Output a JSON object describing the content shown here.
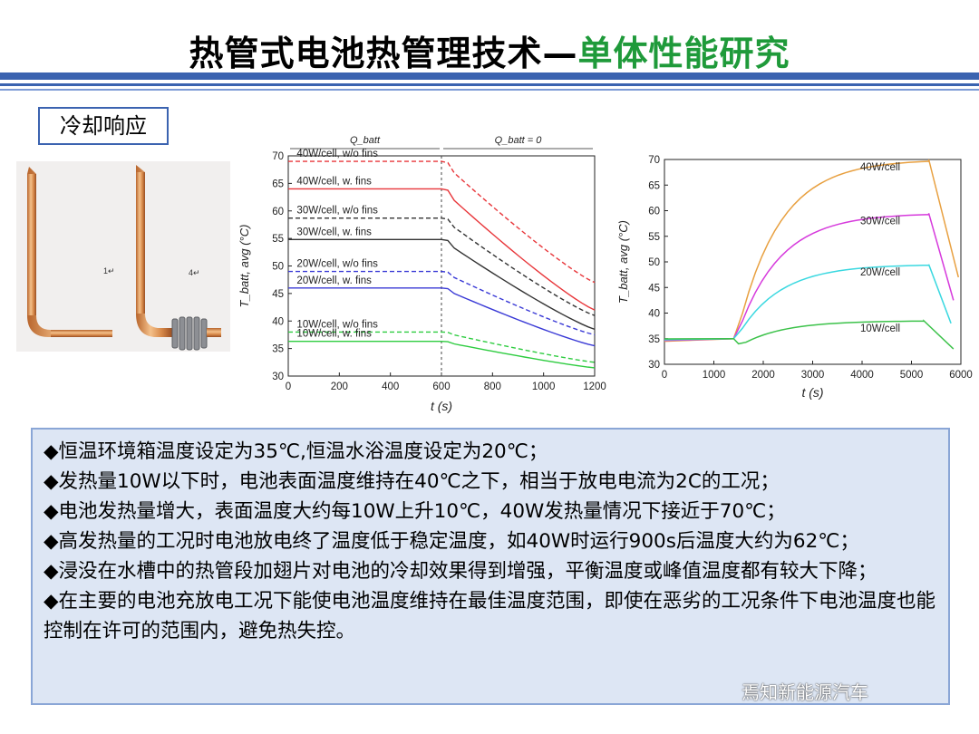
{
  "header": {
    "title_main": "热管式电池热管理技术—",
    "title_accent": "单体性能研究"
  },
  "section_label": "冷却响应",
  "photos": {
    "label_left": "1↵",
    "label_right": "4↵"
  },
  "chart_data": [
    {
      "type": "line",
      "top_labels": [
        "Q_batt",
        "Q_batt = 0"
      ],
      "xlabel": "t (s)",
      "ylabel": "T_batt, avg (°C)",
      "xlim": [
        0,
        1200
      ],
      "ylim": [
        30,
        70
      ],
      "x_ticks": [
        0,
        200,
        400,
        600,
        800,
        1000,
        1200
      ],
      "y_ticks": [
        30,
        35,
        40,
        45,
        50,
        55,
        60,
        65,
        70
      ],
      "vline_x": 600,
      "series": [
        {
          "name": "40W/cell, w/o fins",
          "color": "#e8363a",
          "dash": true,
          "points": [
            [
              0,
              69
            ],
            [
              600,
              69
            ],
            [
              1200,
              47
            ]
          ]
        },
        {
          "name": "40W/cell, w. fins",
          "color": "#e8363a",
          "dash": false,
          "points": [
            [
              0,
              64
            ],
            [
              600,
              64
            ],
            [
              1200,
              42
            ]
          ]
        },
        {
          "name": "30W/cell, w/o fins",
          "color": "#333333",
          "dash": true,
          "points": [
            [
              0,
              58.7
            ],
            [
              600,
              58.7
            ],
            [
              1200,
              41
            ]
          ]
        },
        {
          "name": "30W/cell, w. fins",
          "color": "#333333",
          "dash": false,
          "points": [
            [
              0,
              54.8
            ],
            [
              600,
              54.8
            ],
            [
              1200,
              38.5
            ]
          ]
        },
        {
          "name": "20W/cell, w/o fins",
          "color": "#3a3ad6",
          "dash": true,
          "points": [
            [
              0,
              49
            ],
            [
              600,
              49
            ],
            [
              1200,
              37.5
            ]
          ]
        },
        {
          "name": "20W/cell, w. fins",
          "color": "#3a3ad6",
          "dash": false,
          "points": [
            [
              0,
              46
            ],
            [
              600,
              46
            ],
            [
              1200,
              35.5
            ]
          ]
        },
        {
          "name": "10W/cell, w/o fins",
          "color": "#2ecc40",
          "dash": true,
          "points": [
            [
              0,
              38
            ],
            [
              600,
              38
            ],
            [
              1200,
              32.5
            ]
          ]
        },
        {
          "name": "10W/cell, w. fins",
          "color": "#2ecc40",
          "dash": false,
          "points": [
            [
              0,
              36.3
            ],
            [
              600,
              36.3
            ],
            [
              1200,
              31.5
            ]
          ]
        }
      ]
    },
    {
      "type": "line",
      "xlabel": "t (s)",
      "ylabel": "T_batt, avg (°C)",
      "xlim": [
        0,
        6000
      ],
      "ylim": [
        30,
        70
      ],
      "x_ticks": [
        0,
        1000,
        2000,
        3000,
        4000,
        5000,
        6000
      ],
      "y_ticks": [
        30,
        35,
        40,
        45,
        50,
        55,
        60,
        65,
        70
      ],
      "series": [
        {
          "name": "40W/cell",
          "color": "#e8a040",
          "plateau": 70,
          "end_x": 5350,
          "end_val": 47,
          "final_x": 5950
        },
        {
          "name": "30W/cell",
          "color": "#d63adc",
          "plateau": 59.5,
          "end_x": 5350,
          "end_val": 42.5,
          "final_x": 5850
        },
        {
          "name": "20W/cell",
          "color": "#3ad8e0",
          "plateau": 49.5,
          "end_x": 5350,
          "end_val": 38,
          "final_x": 5800
        },
        {
          "name": "10W/cell",
          "color": "#3cc24a",
          "plateau": 38.5,
          "end_x": 5250,
          "end_val": 33,
          "final_x": 5850
        }
      ]
    }
  ],
  "notes": [
    "◆恒温环境箱温度设定为35℃,恒温水浴温度设定为20℃；",
    "◆发热量10W以下时，电池表面温度维持在40℃之下，相当于放电电流为2C的工况；",
    "◆电池发热量增大，表面温度大约每10W上升10℃，40W发热量情况下接近于70℃；",
    "◆高发热量的工况时电池放电终了温度低于稳定温度，如40W时运行900s后温度大约为62℃；",
    "◆浸没在水槽中的热管段加翅片对电池的冷却效果得到增强，平衡温度或峰值温度都有较大下降；",
    "◆在主要的电池充放电工况下能使电池温度维持在最佳温度范围，即使在恶劣的工况条件下电池温度也能控制在许可的范围内，避免热失控。"
  ],
  "watermark": "焉知新能源汽车"
}
